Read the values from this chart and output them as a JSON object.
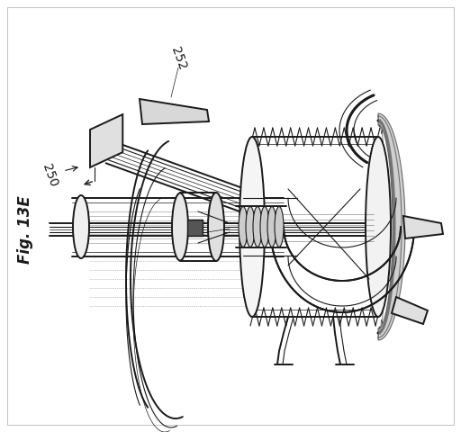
{
  "figure_label": "Fig. 13E",
  "label_252": "252",
  "label_250": "250",
  "background_color": "#ffffff",
  "line_color": "#1a1a1a",
  "figsize": [
    5.12,
    4.8
  ],
  "dpi": 100,
  "fig_label_fontsize": 12,
  "annot_fontsize": 10
}
